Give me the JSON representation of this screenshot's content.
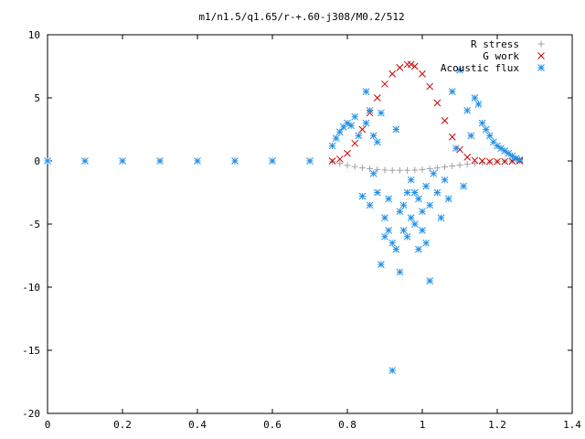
{
  "chart_data": {
    "type": "scatter",
    "title": "m1/n1.5/q1.65/r-+.60-j308/M0.2/512",
    "xlabel": "",
    "ylabel": "",
    "xlim": [
      0,
      1.4
    ],
    "ylim": [
      -20,
      10
    ],
    "x_ticks": [
      "0",
      "0.2",
      "0.4",
      "0.6",
      "0.8",
      "1",
      "1.2",
      "1.4"
    ],
    "y_ticks": [
      "10",
      "5",
      "0",
      "-5",
      "-10",
      "-15",
      "-20"
    ],
    "x_tick_values": [
      0,
      0.2,
      0.4,
      0.6,
      0.8,
      1.0,
      1.2,
      1.4
    ],
    "y_tick_values": [
      10,
      5,
      0,
      -5,
      -10,
      -15,
      -20
    ],
    "grid": false,
    "legend_position": "top-right",
    "series": [
      {
        "name": "R stress",
        "marker": "plus",
        "color": "#a0a0a0",
        "x": [
          0.0,
          0.1,
          0.2,
          0.3,
          0.4,
          0.5,
          0.6,
          0.7,
          0.76,
          0.78,
          0.8,
          0.82,
          0.84,
          0.86,
          0.88,
          0.9,
          0.92,
          0.94,
          0.96,
          0.98,
          1.0,
          1.02,
          1.04,
          1.06,
          1.08,
          1.1,
          1.12,
          1.14,
          1.16,
          1.18,
          1.2,
          1.22,
          1.24,
          1.26
        ],
        "y": [
          0,
          0,
          0,
          0,
          0,
          0,
          0,
          0,
          -0.05,
          -0.2,
          -0.35,
          -0.45,
          -0.55,
          -0.62,
          -0.68,
          -0.72,
          -0.74,
          -0.75,
          -0.74,
          -0.72,
          -0.68,
          -0.62,
          -0.55,
          -0.47,
          -0.4,
          -0.33,
          -0.26,
          -0.2,
          -0.14,
          -0.09,
          -0.05,
          -0.02,
          -0.01,
          0
        ]
      },
      {
        "name": "G work",
        "marker": "cross",
        "color": "#cc0000",
        "x": [
          0.76,
          0.78,
          0.8,
          0.82,
          0.84,
          0.86,
          0.88,
          0.9,
          0.92,
          0.94,
          0.96,
          0.97,
          0.98,
          1.0,
          1.02,
          1.04,
          1.06,
          1.08,
          1.1,
          1.12,
          1.14,
          1.16,
          1.18,
          1.2,
          1.22,
          1.24,
          1.26
        ],
        "y": [
          0,
          0.15,
          0.6,
          1.4,
          2.5,
          3.8,
          5.0,
          6.1,
          6.9,
          7.4,
          7.65,
          7.65,
          7.5,
          6.9,
          5.9,
          4.6,
          3.2,
          1.9,
          0.9,
          0.3,
          0.05,
          0,
          -0.05,
          -0.05,
          -0.04,
          -0.02,
          0
        ]
      },
      {
        "name": "Acoustic flux",
        "marker": "star",
        "color": "#1f8fe8",
        "x": [
          0.0,
          0.1,
          0.2,
          0.3,
          0.4,
          0.5,
          0.6,
          0.7,
          0.76,
          0.77,
          0.78,
          0.79,
          0.8,
          0.81,
          0.82,
          0.83,
          0.84,
          0.85,
          0.85,
          0.86,
          0.86,
          0.87,
          0.87,
          0.88,
          0.88,
          0.89,
          0.89,
          0.9,
          0.9,
          0.91,
          0.91,
          0.92,
          0.92,
          0.93,
          0.93,
          0.94,
          0.94,
          0.95,
          0.95,
          0.96,
          0.96,
          0.97,
          0.97,
          0.98,
          0.98,
          0.99,
          0.99,
          1.0,
          1.0,
          1.01,
          1.01,
          1.02,
          1.02,
          1.03,
          1.04,
          1.05,
          1.06,
          1.07,
          1.08,
          1.09,
          1.1,
          1.11,
          1.12,
          1.13,
          1.14,
          1.15,
          1.16,
          1.17,
          1.18,
          1.19,
          1.2,
          1.21,
          1.22,
          1.23,
          1.24,
          1.25,
          1.26
        ],
        "y": [
          0,
          0,
          0,
          0,
          0,
          0,
          0,
          0,
          1.2,
          1.8,
          2.3,
          2.7,
          3.0,
          2.8,
          3.5,
          2.0,
          -2.8,
          5.5,
          3.0,
          -3.5,
          4.0,
          -1.0,
          2.0,
          -2.5,
          1.5,
          -8.2,
          3.8,
          -4.5,
          -6.0,
          -3.0,
          -5.5,
          -16.6,
          -6.5,
          2.5,
          -7.0,
          -4.0,
          -8.8,
          -3.5,
          -5.5,
          -2.5,
          -6.0,
          -4.5,
          -1.5,
          -5.0,
          -2.5,
          -3.0,
          -7.0,
          -4.0,
          -5.5,
          -2.0,
          -6.5,
          -3.5,
          -9.5,
          -1.0,
          -2.5,
          -4.5,
          -1.5,
          -3.0,
          5.5,
          1.0,
          7.2,
          -2.0,
          4.0,
          2.0,
          5.0,
          4.5,
          3.0,
          2.5,
          2.0,
          1.5,
          1.2,
          1.0,
          0.8,
          0.6,
          0.4,
          0.2,
          0.1
        ]
      }
    ]
  }
}
